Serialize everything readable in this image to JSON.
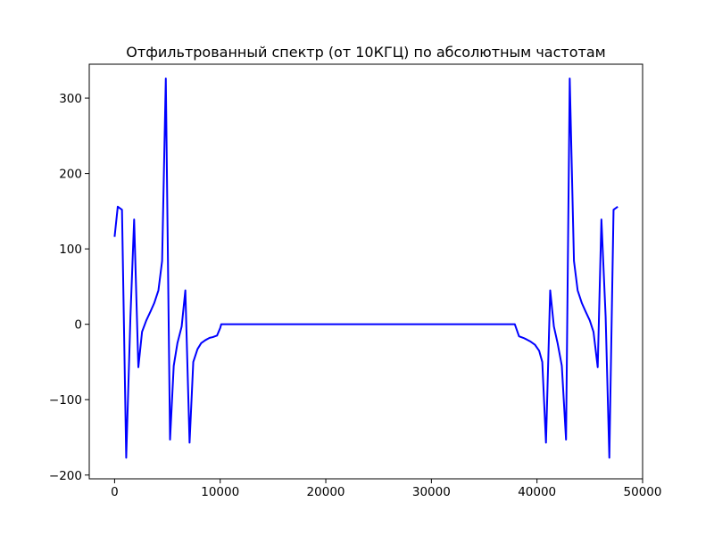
{
  "chart_data": {
    "type": "line",
    "title": "Отфильтрованный спектр (от 10КГЦ) по абсолютным частотам",
    "xlabel": "",
    "ylabel": "",
    "xlim": [
      -2400,
      50000
    ],
    "ylim": [
      -205,
      345
    ],
    "x_ticks": [
      0,
      10000,
      20000,
      30000,
      40000,
      50000
    ],
    "x_tick_labels": [
      "0",
      "10000",
      "20000",
      "30000",
      "40000",
      "50000"
    ],
    "y_ticks": [
      -200,
      -100,
      0,
      100,
      200,
      300
    ],
    "y_tick_labels": [
      "−200",
      "−100",
      "0",
      "100",
      "200",
      "300"
    ],
    "grid": false,
    "series": [
      {
        "color": "#0000ff",
        "x": [
          0,
          300,
          700,
          1100,
          1500,
          1850,
          2250,
          2600,
          3000,
          3400,
          3750,
          4150,
          4500,
          4850,
          5250,
          5600,
          5950,
          6350,
          6700,
          7100,
          7450,
          7850,
          8200,
          8600,
          9000,
          9300,
          9700,
          10000,
          10100,
          11000,
          15000,
          20000,
          25000,
          30000,
          35000,
          37900,
          38300,
          38700,
          39000,
          39400,
          39800,
          40200,
          40500,
          40850,
          41250,
          41600,
          41950,
          42350,
          42750,
          43100,
          43500,
          43850,
          44250,
          44600,
          45000,
          45350,
          45750,
          46100,
          46500,
          46850,
          47250,
          47650
        ],
        "y": [
          116,
          156,
          152,
          -177,
          10,
          139,
          -57,
          -10,
          5,
          17,
          28,
          45,
          84,
          326,
          -153,
          -55,
          -25,
          -3,
          45,
          -157,
          -50,
          -33,
          -25,
          -21,
          -18,
          -17,
          -15,
          -5,
          0,
          0,
          0,
          0,
          0,
          0,
          0,
          0,
          -16,
          -18,
          -20,
          -23,
          -27,
          -35,
          -50,
          -157,
          45,
          -3,
          -25,
          -55,
          -153,
          326,
          84,
          45,
          28,
          17,
          5,
          -10,
          -57,
          139,
          10,
          -177,
          152,
          156
        ]
      }
    ]
  }
}
